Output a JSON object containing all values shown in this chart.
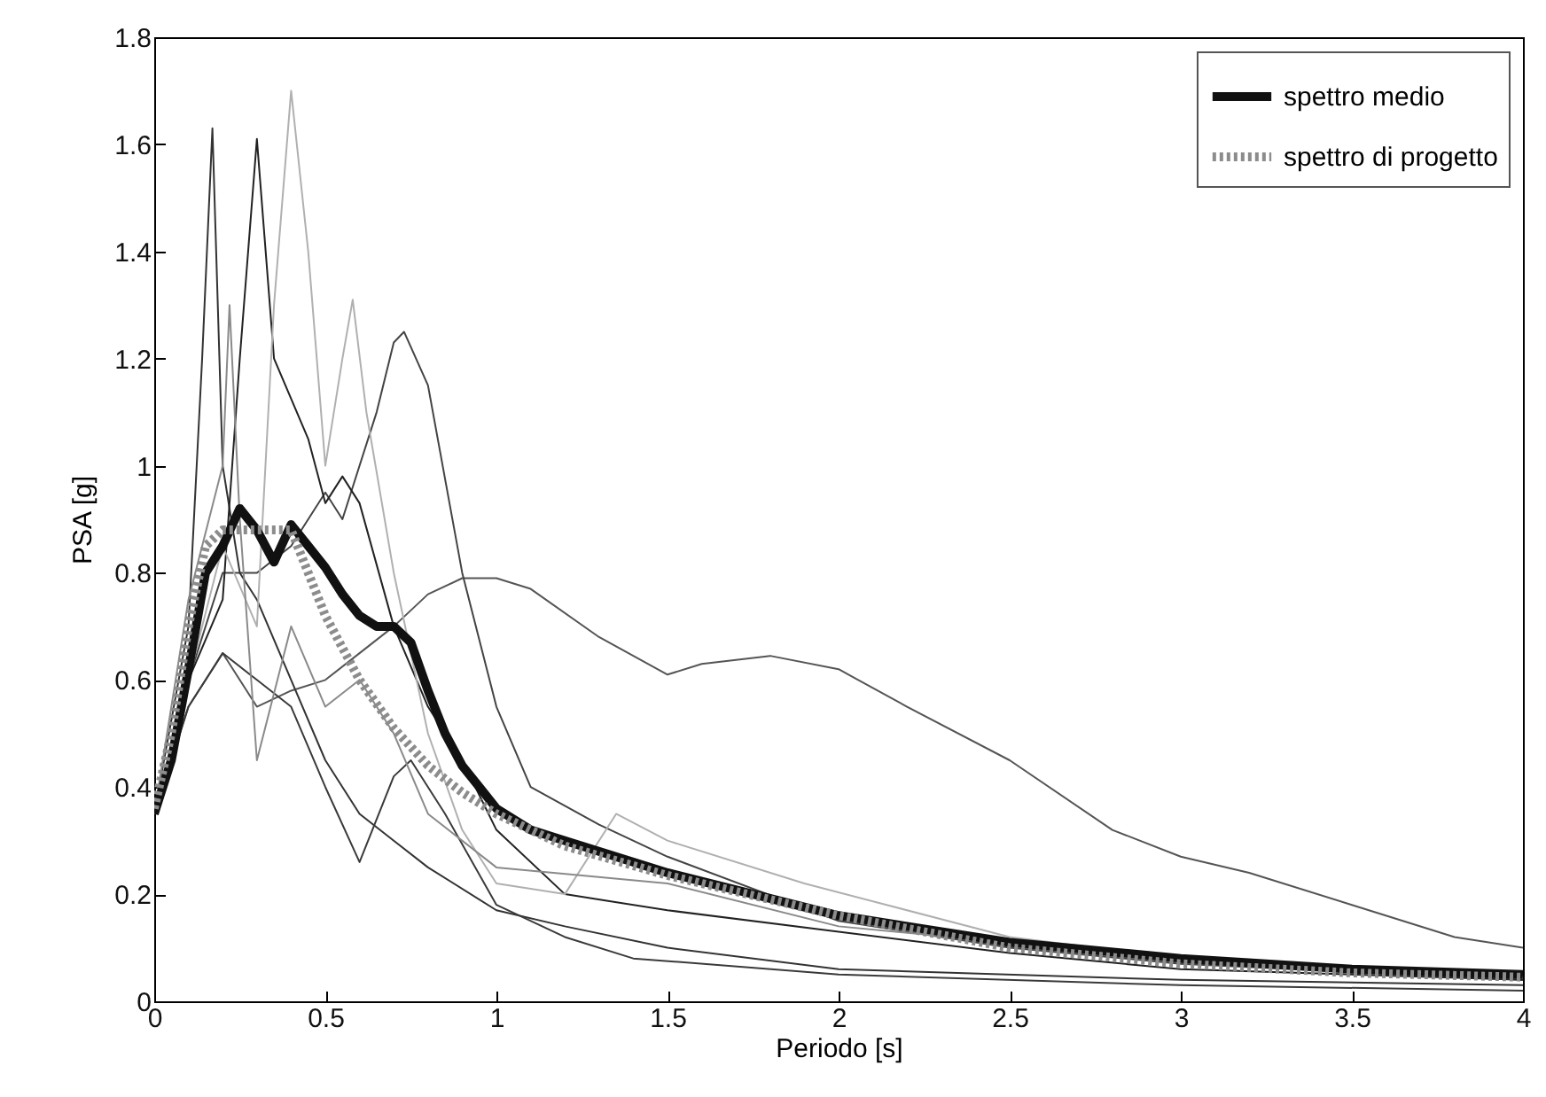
{
  "chart_data": {
    "type": "line",
    "xlabel": "Periodo [s]",
    "ylabel": "PSA [g]",
    "xlim": [
      0,
      4
    ],
    "ylim": [
      0,
      1.8
    ],
    "xticks": [
      0,
      0.5,
      1,
      1.5,
      2,
      2.5,
      3,
      3.5,
      4
    ],
    "yticks": [
      0,
      0.2,
      0.4,
      0.6,
      0.8,
      1,
      1.2,
      1.4,
      1.6,
      1.8
    ],
    "grid": false,
    "legend": "top right",
    "series": [
      {
        "color": "#555555",
        "x": [
          0,
          0.1,
          0.2,
          0.3,
          0.4,
          0.5,
          0.6,
          0.7,
          0.8,
          0.9,
          1.0,
          1.1,
          1.3,
          1.5,
          1.6,
          1.8,
          2,
          2.2,
          2.5,
          2.8,
          3,
          3.2,
          3.5,
          3.8,
          4
        ],
        "values": [
          0.35,
          0.55,
          0.65,
          0.55,
          0.58,
          0.6,
          0.65,
          0.7,
          0.76,
          0.79,
          0.79,
          0.77,
          0.68,
          0.61,
          0.63,
          0.645,
          0.62,
          0.55,
          0.45,
          0.32,
          0.27,
          0.24,
          0.18,
          0.12,
          0.1
        ]
      },
      {
        "color": "#444444",
        "x": [
          0,
          0.1,
          0.2,
          0.3,
          0.4,
          0.5,
          0.55,
          0.6,
          0.65,
          0.7,
          0.73,
          0.8,
          0.9,
          1.0,
          1.1,
          1.3,
          1.5,
          2,
          2.5,
          3,
          4
        ],
        "values": [
          0.35,
          0.6,
          0.8,
          0.8,
          0.85,
          0.95,
          0.9,
          1.0,
          1.1,
          1.23,
          1.25,
          1.15,
          0.8,
          0.55,
          0.4,
          0.33,
          0.27,
          0.15,
          0.1,
          0.07,
          0.04
        ]
      },
      {
        "color": "#333333",
        "x": [
          0,
          0.1,
          0.14,
          0.17,
          0.2,
          0.25,
          0.3,
          0.4,
          0.5,
          0.6,
          0.7,
          0.8,
          1.0,
          1.2,
          1.5,
          2,
          3,
          4
        ],
        "values": [
          0.35,
          0.7,
          1.2,
          1.63,
          1.0,
          0.8,
          0.75,
          0.6,
          0.45,
          0.35,
          0.3,
          0.25,
          0.17,
          0.14,
          0.1,
          0.06,
          0.04,
          0.03
        ]
      },
      {
        "color": "#222222",
        "x": [
          0,
          0.1,
          0.2,
          0.25,
          0.3,
          0.35,
          0.45,
          0.5,
          0.55,
          0.6,
          0.7,
          0.8,
          0.9,
          1.0,
          1.2,
          1.5,
          2,
          2.5,
          3,
          4
        ],
        "values": [
          0.35,
          0.6,
          0.75,
          1.2,
          1.61,
          1.2,
          1.05,
          0.93,
          0.98,
          0.93,
          0.7,
          0.55,
          0.45,
          0.32,
          0.2,
          0.17,
          0.13,
          0.09,
          0.06,
          0.04
        ]
      },
      {
        "color": "#b0b0b0",
        "x": [
          0,
          0.1,
          0.2,
          0.3,
          0.35,
          0.4,
          0.45,
          0.5,
          0.55,
          0.58,
          0.62,
          0.7,
          0.8,
          0.9,
          1.0,
          1.2,
          1.35,
          1.5,
          1.9,
          2.5,
          3,
          4
        ],
        "values": [
          0.35,
          0.6,
          0.85,
          0.7,
          1.3,
          1.7,
          1.4,
          1.0,
          1.2,
          1.31,
          1.1,
          0.8,
          0.5,
          0.32,
          0.22,
          0.2,
          0.35,
          0.3,
          0.22,
          0.12,
          0.08,
          0.05
        ]
      },
      {
        "color": "#3a3a3a",
        "x": [
          0,
          0.1,
          0.2,
          0.3,
          0.4,
          0.5,
          0.6,
          0.7,
          0.75,
          0.85,
          1.0,
          1.2,
          1.4,
          2,
          3,
          4
        ],
        "values": [
          0.35,
          0.55,
          0.65,
          0.6,
          0.55,
          0.4,
          0.26,
          0.42,
          0.45,
          0.35,
          0.18,
          0.12,
          0.08,
          0.05,
          0.03,
          0.02
        ]
      },
      {
        "color": "#8a8a8a",
        "x": [
          0,
          0.1,
          0.2,
          0.22,
          0.25,
          0.3,
          0.4,
          0.5,
          0.6,
          0.7,
          0.8,
          1,
          1.5,
          2,
          3,
          4
        ],
        "values": [
          0.35,
          0.75,
          1.0,
          1.3,
          0.9,
          0.45,
          0.7,
          0.55,
          0.6,
          0.5,
          0.35,
          0.25,
          0.22,
          0.14,
          0.08,
          0.05
        ]
      },
      {
        "name": "spettro medio",
        "color": "#111111",
        "line_style": "solid",
        "x": [
          0,
          0.05,
          0.1,
          0.15,
          0.2,
          0.25,
          0.3,
          0.35,
          0.4,
          0.45,
          0.5,
          0.55,
          0.6,
          0.65,
          0.7,
          0.75,
          0.8,
          0.85,
          0.9,
          0.95,
          1.0,
          1.1,
          1.2,
          1.5,
          2,
          2.5,
          3,
          3.5,
          4
        ],
        "values": [
          0.35,
          0.45,
          0.62,
          0.8,
          0.85,
          0.92,
          0.88,
          0.82,
          0.89,
          0.85,
          0.81,
          0.76,
          0.72,
          0.7,
          0.7,
          0.67,
          0.58,
          0.5,
          0.44,
          0.4,
          0.36,
          0.32,
          0.3,
          0.24,
          0.16,
          0.11,
          0.08,
          0.06,
          0.05
        ]
      },
      {
        "name": "spettro di progetto",
        "color": "#8c8c8c",
        "line_style": "dotted",
        "x": [
          0,
          0.05,
          0.1,
          0.15,
          0.2,
          0.3,
          0.4,
          0.5,
          0.6,
          0.7,
          0.8,
          0.9,
          1.0,
          1.2,
          1.5,
          2,
          2.5,
          3,
          3.5,
          4
        ],
        "values": [
          0.36,
          0.5,
          0.7,
          0.85,
          0.88,
          0.88,
          0.88,
          0.72,
          0.6,
          0.51,
          0.44,
          0.39,
          0.35,
          0.29,
          0.235,
          0.16,
          0.1,
          0.07,
          0.053,
          0.045
        ]
      }
    ]
  }
}
